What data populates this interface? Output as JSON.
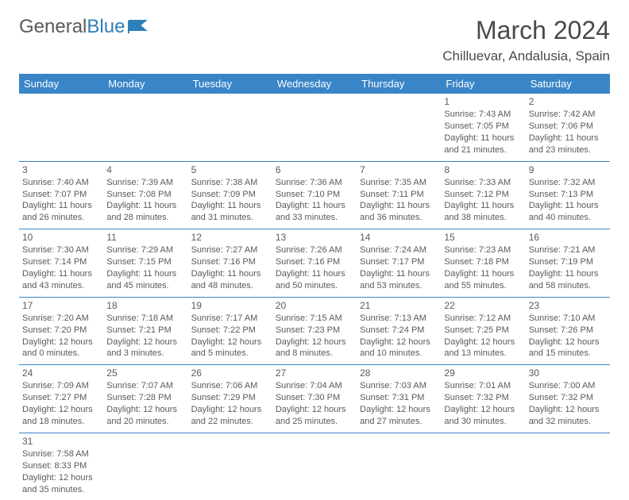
{
  "logo": {
    "text1": "General",
    "text2": "Blue"
  },
  "header": {
    "month": "March 2024",
    "location": "Chilluevar, Andalusia, Spain"
  },
  "weekdays": [
    "Sunday",
    "Monday",
    "Tuesday",
    "Wednesday",
    "Thursday",
    "Friday",
    "Saturday"
  ],
  "colors": {
    "headerBg": "#3985c7",
    "headerText": "#ffffff",
    "border": "#3985c7",
    "text": "#5a5a5a",
    "logoBlue": "#2f7fb8"
  },
  "weeks": [
    [
      null,
      null,
      null,
      null,
      null,
      {
        "n": "1",
        "sr": "Sunrise: 7:43 AM",
        "ss": "Sunset: 7:05 PM",
        "d1": "Daylight: 11 hours",
        "d2": "and 21 minutes."
      },
      {
        "n": "2",
        "sr": "Sunrise: 7:42 AM",
        "ss": "Sunset: 7:06 PM",
        "d1": "Daylight: 11 hours",
        "d2": "and 23 minutes."
      }
    ],
    [
      {
        "n": "3",
        "sr": "Sunrise: 7:40 AM",
        "ss": "Sunset: 7:07 PM",
        "d1": "Daylight: 11 hours",
        "d2": "and 26 minutes."
      },
      {
        "n": "4",
        "sr": "Sunrise: 7:39 AM",
        "ss": "Sunset: 7:08 PM",
        "d1": "Daylight: 11 hours",
        "d2": "and 28 minutes."
      },
      {
        "n": "5",
        "sr": "Sunrise: 7:38 AM",
        "ss": "Sunset: 7:09 PM",
        "d1": "Daylight: 11 hours",
        "d2": "and 31 minutes."
      },
      {
        "n": "6",
        "sr": "Sunrise: 7:36 AM",
        "ss": "Sunset: 7:10 PM",
        "d1": "Daylight: 11 hours",
        "d2": "and 33 minutes."
      },
      {
        "n": "7",
        "sr": "Sunrise: 7:35 AM",
        "ss": "Sunset: 7:11 PM",
        "d1": "Daylight: 11 hours",
        "d2": "and 36 minutes."
      },
      {
        "n": "8",
        "sr": "Sunrise: 7:33 AM",
        "ss": "Sunset: 7:12 PM",
        "d1": "Daylight: 11 hours",
        "d2": "and 38 minutes."
      },
      {
        "n": "9",
        "sr": "Sunrise: 7:32 AM",
        "ss": "Sunset: 7:13 PM",
        "d1": "Daylight: 11 hours",
        "d2": "and 40 minutes."
      }
    ],
    [
      {
        "n": "10",
        "sr": "Sunrise: 7:30 AM",
        "ss": "Sunset: 7:14 PM",
        "d1": "Daylight: 11 hours",
        "d2": "and 43 minutes."
      },
      {
        "n": "11",
        "sr": "Sunrise: 7:29 AM",
        "ss": "Sunset: 7:15 PM",
        "d1": "Daylight: 11 hours",
        "d2": "and 45 minutes."
      },
      {
        "n": "12",
        "sr": "Sunrise: 7:27 AM",
        "ss": "Sunset: 7:16 PM",
        "d1": "Daylight: 11 hours",
        "d2": "and 48 minutes."
      },
      {
        "n": "13",
        "sr": "Sunrise: 7:26 AM",
        "ss": "Sunset: 7:16 PM",
        "d1": "Daylight: 11 hours",
        "d2": "and 50 minutes."
      },
      {
        "n": "14",
        "sr": "Sunrise: 7:24 AM",
        "ss": "Sunset: 7:17 PM",
        "d1": "Daylight: 11 hours",
        "d2": "and 53 minutes."
      },
      {
        "n": "15",
        "sr": "Sunrise: 7:23 AM",
        "ss": "Sunset: 7:18 PM",
        "d1": "Daylight: 11 hours",
        "d2": "and 55 minutes."
      },
      {
        "n": "16",
        "sr": "Sunrise: 7:21 AM",
        "ss": "Sunset: 7:19 PM",
        "d1": "Daylight: 11 hours",
        "d2": "and 58 minutes."
      }
    ],
    [
      {
        "n": "17",
        "sr": "Sunrise: 7:20 AM",
        "ss": "Sunset: 7:20 PM",
        "d1": "Daylight: 12 hours",
        "d2": "and 0 minutes."
      },
      {
        "n": "18",
        "sr": "Sunrise: 7:18 AM",
        "ss": "Sunset: 7:21 PM",
        "d1": "Daylight: 12 hours",
        "d2": "and 3 minutes."
      },
      {
        "n": "19",
        "sr": "Sunrise: 7:17 AM",
        "ss": "Sunset: 7:22 PM",
        "d1": "Daylight: 12 hours",
        "d2": "and 5 minutes."
      },
      {
        "n": "20",
        "sr": "Sunrise: 7:15 AM",
        "ss": "Sunset: 7:23 PM",
        "d1": "Daylight: 12 hours",
        "d2": "and 8 minutes."
      },
      {
        "n": "21",
        "sr": "Sunrise: 7:13 AM",
        "ss": "Sunset: 7:24 PM",
        "d1": "Daylight: 12 hours",
        "d2": "and 10 minutes."
      },
      {
        "n": "22",
        "sr": "Sunrise: 7:12 AM",
        "ss": "Sunset: 7:25 PM",
        "d1": "Daylight: 12 hours",
        "d2": "and 13 minutes."
      },
      {
        "n": "23",
        "sr": "Sunrise: 7:10 AM",
        "ss": "Sunset: 7:26 PM",
        "d1": "Daylight: 12 hours",
        "d2": "and 15 minutes."
      }
    ],
    [
      {
        "n": "24",
        "sr": "Sunrise: 7:09 AM",
        "ss": "Sunset: 7:27 PM",
        "d1": "Daylight: 12 hours",
        "d2": "and 18 minutes."
      },
      {
        "n": "25",
        "sr": "Sunrise: 7:07 AM",
        "ss": "Sunset: 7:28 PM",
        "d1": "Daylight: 12 hours",
        "d2": "and 20 minutes."
      },
      {
        "n": "26",
        "sr": "Sunrise: 7:06 AM",
        "ss": "Sunset: 7:29 PM",
        "d1": "Daylight: 12 hours",
        "d2": "and 22 minutes."
      },
      {
        "n": "27",
        "sr": "Sunrise: 7:04 AM",
        "ss": "Sunset: 7:30 PM",
        "d1": "Daylight: 12 hours",
        "d2": "and 25 minutes."
      },
      {
        "n": "28",
        "sr": "Sunrise: 7:03 AM",
        "ss": "Sunset: 7:31 PM",
        "d1": "Daylight: 12 hours",
        "d2": "and 27 minutes."
      },
      {
        "n": "29",
        "sr": "Sunrise: 7:01 AM",
        "ss": "Sunset: 7:32 PM",
        "d1": "Daylight: 12 hours",
        "d2": "and 30 minutes."
      },
      {
        "n": "30",
        "sr": "Sunrise: 7:00 AM",
        "ss": "Sunset: 7:32 PM",
        "d1": "Daylight: 12 hours",
        "d2": "and 32 minutes."
      }
    ],
    [
      {
        "n": "31",
        "sr": "Sunrise: 7:58 AM",
        "ss": "Sunset: 8:33 PM",
        "d1": "Daylight: 12 hours",
        "d2": "and 35 minutes."
      },
      null,
      null,
      null,
      null,
      null,
      null
    ]
  ]
}
